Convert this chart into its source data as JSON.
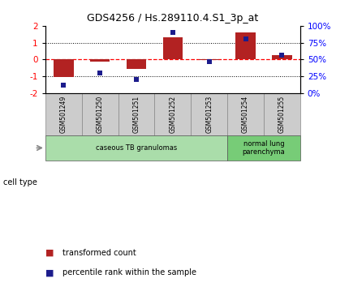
{
  "title": "GDS4256 / Hs.289110.4.S1_3p_at",
  "samples": [
    "GSM501249",
    "GSM501250",
    "GSM501251",
    "GSM501252",
    "GSM501253",
    "GSM501254",
    "GSM501255"
  ],
  "transformed_count": [
    -1.05,
    -0.12,
    -0.55,
    1.3,
    -0.05,
    1.6,
    0.25
  ],
  "percentile_rank": [
    12,
    30,
    20,
    90,
    47,
    80,
    57
  ],
  "ylim_left": [
    -2,
    2
  ],
  "ylim_right": [
    0,
    100
  ],
  "yticks_left": [
    -2,
    -1,
    0,
    1,
    2
  ],
  "yticks_right": [
    0,
    25,
    50,
    75,
    100
  ],
  "ytick_labels_right": [
    "0%",
    "25%",
    "50%",
    "75%",
    "100%"
  ],
  "dotted_lines": [
    -1,
    1
  ],
  "bar_color": "#b22222",
  "dot_color": "#1c1c8c",
  "cell_type_groups": [
    {
      "label": "caseous TB granulomas",
      "indices": [
        0,
        4
      ],
      "color": "#aaddaa"
    },
    {
      "label": "normal lung\nparenchyma",
      "indices": [
        5,
        6
      ],
      "color": "#77cc77"
    }
  ],
  "legend_bar_label": "transformed count",
  "legend_dot_label": "percentile rank within the sample",
  "cell_type_label": "cell type",
  "background_color": "#ffffff",
  "tick_area_color": "#cccccc"
}
